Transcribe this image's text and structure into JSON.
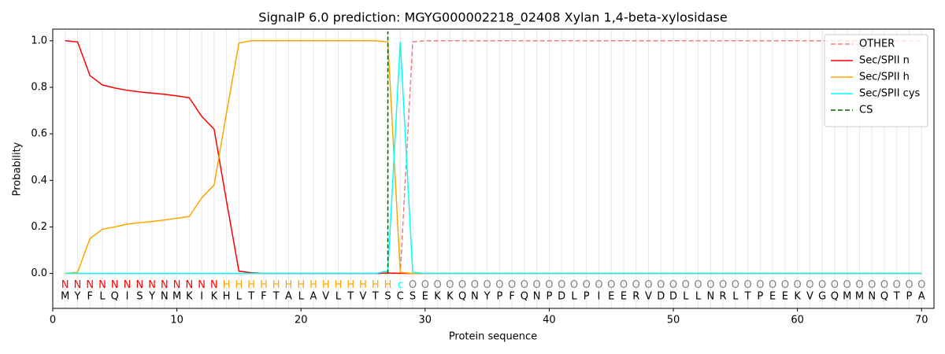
{
  "chart_data": {
    "type": "line",
    "title": "SignalP 6.0 prediction: MGYG000002218_02408 Xylan 1,4-beta-xylosidase",
    "x_label": "Protein sequence",
    "y_label": "Probability",
    "x": [
      1,
      2,
      3,
      4,
      5,
      6,
      7,
      8,
      9,
      10,
      11,
      12,
      13,
      14,
      15,
      16,
      17,
      18,
      19,
      20,
      21,
      22,
      23,
      24,
      25,
      26,
      27,
      28,
      29,
      30,
      31,
      32,
      33,
      34,
      35,
      36,
      37,
      38,
      39,
      40,
      41,
      42,
      43,
      44,
      45,
      46,
      47,
      48,
      49,
      50,
      51,
      52,
      53,
      54,
      55,
      56,
      57,
      58,
      59,
      60,
      61,
      62,
      63,
      64,
      65,
      66,
      67,
      68,
      69,
      70
    ],
    "residues": [
      "M",
      "Y",
      "F",
      "L",
      "Q",
      "I",
      "S",
      "Y",
      "N",
      "M",
      "K",
      "I",
      "K",
      "H",
      "L",
      "T",
      "F",
      "T",
      "A",
      "L",
      "A",
      "V",
      "L",
      "T",
      "V",
      "T",
      "S",
      "C",
      "S",
      "E",
      "K",
      "K",
      "Q",
      "N",
      "Y",
      "P",
      "F",
      "Q",
      "N",
      "P",
      "D",
      "L",
      "P",
      "I",
      "E",
      "E",
      "R",
      "V",
      "D",
      "D",
      "L",
      "L",
      "N",
      "R",
      "L",
      "T",
      "P",
      "E",
      "E",
      "K",
      "V",
      "G",
      "Q",
      "M",
      "M",
      "N",
      "Q",
      "T",
      "P",
      "A"
    ],
    "labels": [
      "N",
      "N",
      "N",
      "N",
      "N",
      "N",
      "N",
      "N",
      "N",
      "N",
      "N",
      "N",
      "N",
      "H",
      "H",
      "H",
      "H",
      "H",
      "H",
      "H",
      "H",
      "H",
      "H",
      "H",
      "H",
      "H",
      "H",
      "c",
      "O",
      "O",
      "O",
      "O",
      "O",
      "O",
      "O",
      "O",
      "O",
      "O",
      "O",
      "O",
      "O",
      "O",
      "O",
      "O",
      "O",
      "O",
      "O",
      "O",
      "O",
      "O",
      "O",
      "O",
      "O",
      "O",
      "O",
      "O",
      "O",
      "O",
      "O",
      "O",
      "O",
      "O",
      "O",
      "O",
      "O",
      "O",
      "O",
      "O",
      "O",
      "O"
    ],
    "label_colors": {
      "N": "#ff0000",
      "H": "#ffa500",
      "c": "#00ffff",
      "O": "#808080"
    },
    "series": [
      {
        "name": "OTHER",
        "color": "#f08080",
        "dashed": true,
        "values": [
          0,
          0,
          0,
          0,
          0,
          0,
          0,
          0,
          0,
          0,
          0,
          0,
          0,
          0,
          0,
          0,
          0,
          0,
          0,
          0,
          0,
          0,
          0,
          0,
          0,
          0,
          0,
          0,
          0.995,
          1,
          1,
          1,
          1,
          1,
          1,
          1,
          1,
          1,
          1,
          1,
          1,
          1,
          1,
          1,
          1,
          1,
          1,
          1,
          1,
          1,
          1,
          1,
          1,
          1,
          1,
          1,
          1,
          1,
          1,
          1,
          1,
          1,
          1,
          1,
          1,
          1,
          1,
          1,
          1,
          1
        ]
      },
      {
        "name": "Sec/SPII n",
        "color": "#ff0000",
        "values": [
          1.0,
          0.995,
          0.85,
          0.81,
          0.797,
          0.787,
          0.78,
          0.775,
          0.77,
          0.763,
          0.755,
          0.675,
          0.62,
          0.31,
          0.01,
          0.003,
          0,
          0,
          0,
          0,
          0,
          0,
          0,
          0,
          0,
          0,
          0.002,
          0.001,
          0,
          0,
          0,
          0,
          0,
          0,
          0,
          0,
          0,
          0,
          0,
          0,
          0,
          0,
          0,
          0,
          0,
          0,
          0,
          0,
          0,
          0,
          0,
          0,
          0,
          0,
          0,
          0,
          0,
          0,
          0,
          0,
          0,
          0,
          0,
          0,
          0,
          0,
          0,
          0,
          0,
          0
        ]
      },
      {
        "name": "Sec/SPII h",
        "color": "#ffa500",
        "values": [
          0,
          0.005,
          0.15,
          0.19,
          0.2,
          0.212,
          0.218,
          0.223,
          0.23,
          0.237,
          0.245,
          0.325,
          0.38,
          0.69,
          0.99,
          1.0,
          1,
          1,
          1,
          1,
          1,
          1,
          1,
          1,
          1,
          1,
          0.995,
          0.005,
          0,
          0,
          0,
          0,
          0,
          0,
          0,
          0,
          0,
          0,
          0,
          0,
          0,
          0,
          0,
          0,
          0,
          0,
          0,
          0,
          0,
          0,
          0,
          0,
          0,
          0,
          0,
          0,
          0,
          0,
          0,
          0,
          0,
          0,
          0,
          0,
          0,
          0,
          0,
          0,
          0,
          0
        ]
      },
      {
        "name": "Sec/SPII cys",
        "color": "#00ffff",
        "values": [
          0,
          0,
          0,
          0,
          0,
          0,
          0,
          0,
          0,
          0,
          0,
          0,
          0,
          0,
          0,
          0,
          0,
          0,
          0,
          0,
          0,
          0,
          0,
          0,
          0,
          0,
          0.01,
          0.995,
          0.005,
          0,
          0,
          0,
          0,
          0,
          0,
          0,
          0,
          0,
          0,
          0,
          0,
          0,
          0,
          0,
          0,
          0,
          0,
          0,
          0,
          0,
          0,
          0,
          0,
          0,
          0,
          0,
          0,
          0,
          0,
          0,
          0,
          0,
          0,
          0,
          0,
          0,
          0,
          0,
          0,
          0
        ]
      },
      {
        "name": "CS",
        "color": "#006400",
        "dashed": true,
        "x": 27
      }
    ],
    "xlim": [
      0,
      71
    ],
    "ylim": [
      -0.15,
      1.05
    ],
    "xticks": [
      0,
      10,
      20,
      30,
      40,
      50,
      60,
      70
    ],
    "yticks": [
      {
        "value": 0,
        "label": "0.0"
      },
      {
        "value": 0.2,
        "label": "0.2"
      },
      {
        "value": 0.4,
        "label": "0.4"
      },
      {
        "value": 0.6,
        "label": "0.6"
      },
      {
        "value": 0.8,
        "label": "0.8"
      },
      {
        "value": 1,
        "label": "1.0"
      }
    ],
    "legend": "upper right"
  }
}
